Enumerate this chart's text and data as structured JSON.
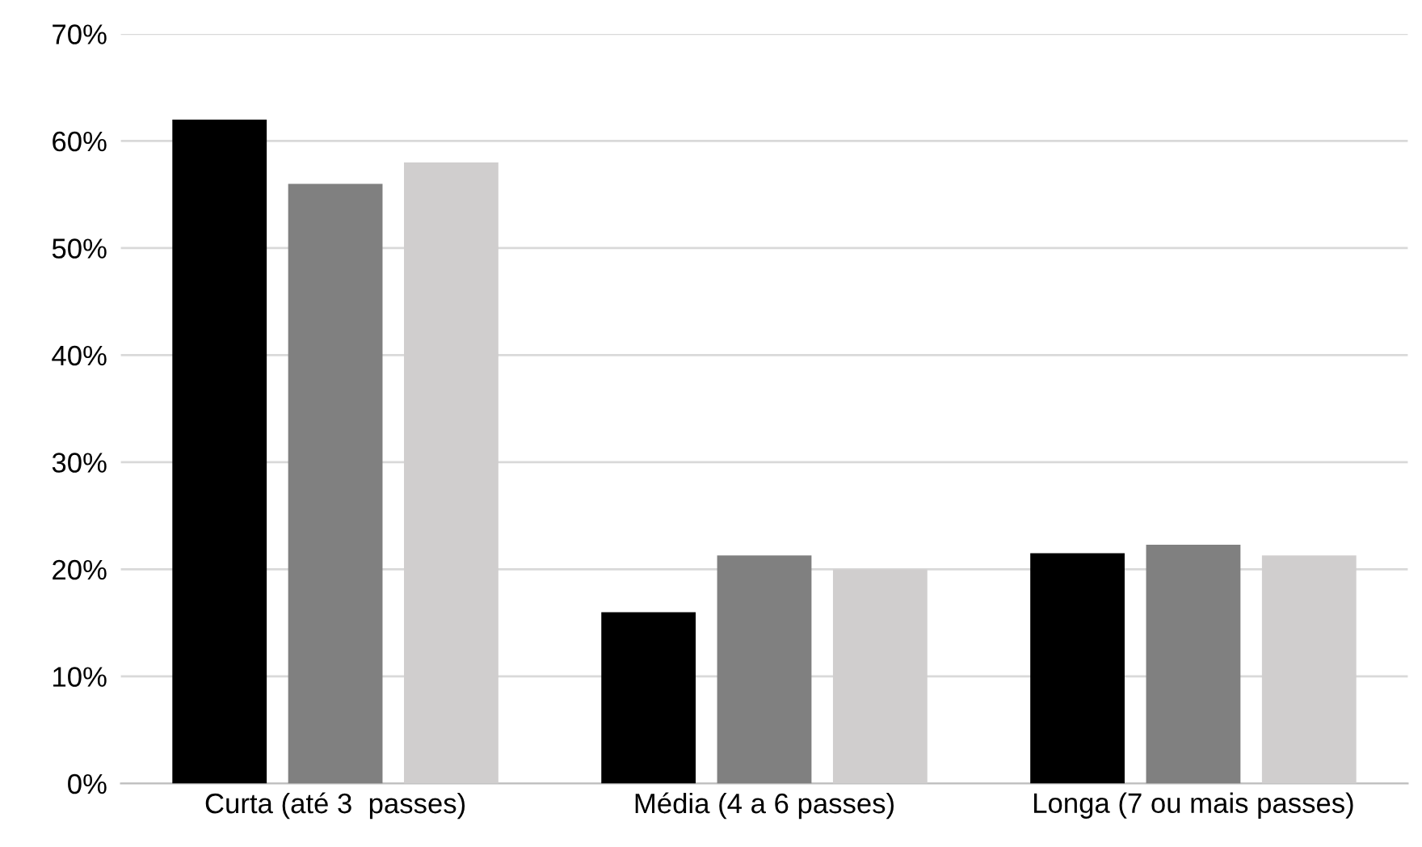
{
  "chart_data": {
    "type": "bar",
    "categories": [
      "Curta (até 3  passes)",
      "Média (4 a 6 passes)",
      "Longa (7 ou mais passes)"
    ],
    "series": [
      {
        "color": "#000000",
        "values": [
          62,
          16,
          21.5
        ]
      },
      {
        "color": "#808080",
        "values": [
          56,
          21.3,
          22.3
        ]
      },
      {
        "color": "#d0cece",
        "values": [
          58,
          20,
          21.3
        ]
      }
    ],
    "ylim": [
      0,
      70
    ],
    "yticks": [
      {
        "value": 0,
        "label": "0%"
      },
      {
        "value": 10,
        "label": "10%"
      },
      {
        "value": 20,
        "label": "20%"
      },
      {
        "value": 30,
        "label": "30%"
      },
      {
        "value": 40,
        "label": "40%"
      },
      {
        "value": 50,
        "label": "50%"
      },
      {
        "value": 60,
        "label": "60%"
      },
      {
        "value": 70,
        "label": "70%"
      }
    ],
    "grid": "y"
  }
}
